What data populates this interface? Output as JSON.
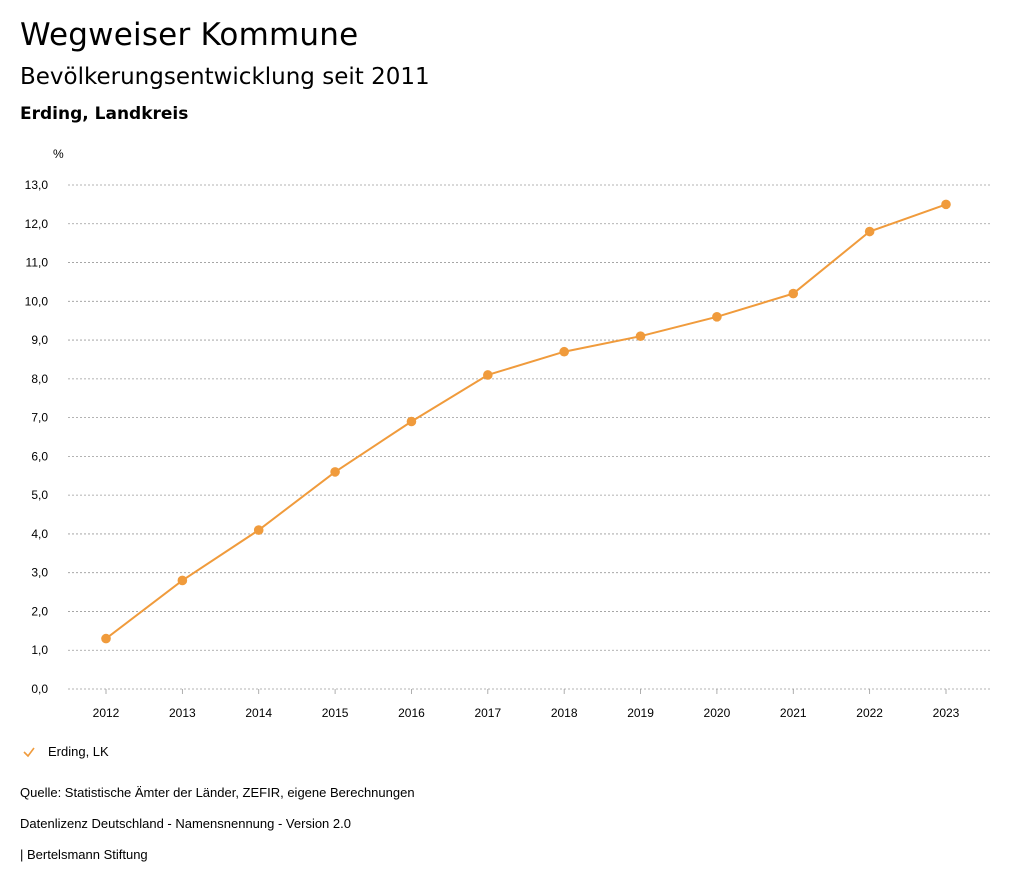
{
  "header": {
    "title": "Wegweiser Kommune",
    "subtitle": "Bevölkerungsentwicklung seit 2011",
    "region": "Erding, Landkreis"
  },
  "chart_data": {
    "type": "line",
    "unit": "%",
    "categories": [
      "2012",
      "2013",
      "2014",
      "2015",
      "2016",
      "2017",
      "2018",
      "2019",
      "2020",
      "2021",
      "2022",
      "2023"
    ],
    "series": [
      {
        "name": "Erding, LK",
        "color": "#f09b3c",
        "values": [
          1.3,
          2.8,
          4.1,
          5.6,
          6.9,
          8.1,
          8.7,
          9.1,
          9.6,
          10.2,
          11.8,
          12.5
        ]
      }
    ],
    "ylim": [
      0,
      13
    ],
    "yticks": [
      "0,0",
      "1,0",
      "2,0",
      "3,0",
      "4,0",
      "5,0",
      "6,0",
      "7,0",
      "8,0",
      "9,0",
      "10,0",
      "11,0",
      "12,0",
      "13,0"
    ],
    "grid": true,
    "legend_position": "bottom-left"
  },
  "legend": {
    "label": "Erding, LK",
    "icon": "checkmark-icon"
  },
  "footer": {
    "source": "Quelle: Statistische Ämter der Länder, ZEFIR, eigene Berechnungen",
    "license": "Datenlizenz Deutschland - Namensnennung - Version 2.0",
    "publisher": "| Bertelsmann Stiftung"
  }
}
